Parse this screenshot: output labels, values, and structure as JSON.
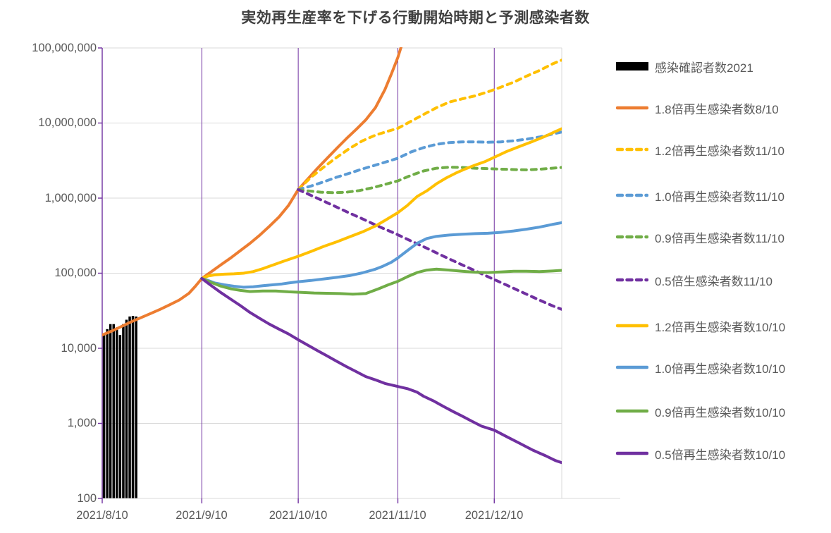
{
  "title": "実効再生産率を下げる行動開始時期と予測感染者数",
  "chart_data": {
    "type": "line",
    "title": "実効再生産率を下げる行動開始時期と予測感染者数",
    "legend_position": "right",
    "grid": {
      "h_color": "#D9D9D9",
      "v_color": "#7030A0",
      "grid_on": true
    },
    "y_axis": {
      "scale": "log",
      "min": 100,
      "max": 100000000,
      "tick_labels": [
        "100,000,000",
        "10,000,000",
        "1,000,000",
        "100,000",
        "10,000",
        "1,000",
        "100"
      ]
    },
    "x_axis": {
      "tick_labels": [
        "2021/8/10",
        "2021/9/10",
        "2021/10/10",
        "2021/11/10",
        "2021/12/10"
      ],
      "tick_days": [
        0,
        31,
        61,
        92,
        122
      ],
      "end_day": 143
    },
    "bars": {
      "name": "感染確認者数2021",
      "color": "#000000",
      "points": [
        [
          0,
          15500
        ],
        [
          1,
          18000
        ],
        [
          2,
          21000
        ],
        [
          3,
          21000
        ],
        [
          4,
          19000
        ],
        [
          5,
          15000
        ],
        [
          6,
          21000
        ],
        [
          7,
          24000
        ],
        [
          8,
          26500
        ],
        [
          9,
          27000
        ],
        [
          10,
          26500
        ]
      ]
    },
    "series": [
      {
        "name": "1.8倍再生感染者数8/10",
        "color": "#ED7D31",
        "dashed": false,
        "points": [
          [
            0,
            15000
          ],
          [
            3,
            17000
          ],
          [
            6,
            19500
          ],
          [
            9,
            22500
          ],
          [
            12,
            25500
          ],
          [
            15,
            29000
          ],
          [
            18,
            33000
          ],
          [
            21,
            38000
          ],
          [
            24,
            44000
          ],
          [
            27,
            54000
          ],
          [
            29,
            67000
          ],
          [
            31,
            85000
          ],
          [
            34,
            105000
          ],
          [
            37,
            130000
          ],
          [
            40,
            160000
          ],
          [
            43,
            200000
          ],
          [
            46,
            250000
          ],
          [
            49,
            320000
          ],
          [
            52,
            420000
          ],
          [
            55,
            560000
          ],
          [
            58,
            800000
          ],
          [
            61,
            1300000
          ],
          [
            64,
            1800000
          ],
          [
            67,
            2500000
          ],
          [
            70,
            3400000
          ],
          [
            73,
            4600000
          ],
          [
            76,
            6200000
          ],
          [
            79,
            8200000
          ],
          [
            82,
            11000000
          ],
          [
            85,
            16000000
          ],
          [
            88,
            28000000
          ],
          [
            90,
            45000000
          ],
          [
            92,
            75000000
          ],
          [
            94,
            140000000
          ]
        ]
      },
      {
        "name": "1.2倍再生感染者数11/10",
        "color": "#FFC000",
        "dashed": true,
        "points": [
          [
            61,
            1300000
          ],
          [
            65,
            1900000
          ],
          [
            69,
            2600000
          ],
          [
            73,
            3500000
          ],
          [
            77,
            4600000
          ],
          [
            81,
            5800000
          ],
          [
            85,
            6900000
          ],
          [
            89,
            7800000
          ],
          [
            92,
            8500000
          ],
          [
            96,
            10500000
          ],
          [
            100,
            13000000
          ],
          [
            104,
            16000000
          ],
          [
            108,
            19000000
          ],
          [
            112,
            21000000
          ],
          [
            116,
            23000000
          ],
          [
            120,
            26000000
          ],
          [
            124,
            30000000
          ],
          [
            128,
            35000000
          ],
          [
            132,
            42000000
          ],
          [
            136,
            50000000
          ],
          [
            140,
            61000000
          ],
          [
            143,
            69000000
          ]
        ]
      },
      {
        "name": "1.0倍再生感染者数11/10",
        "color": "#5B9BD5",
        "dashed": true,
        "points": [
          [
            61,
            1300000
          ],
          [
            65,
            1450000
          ],
          [
            69,
            1650000
          ],
          [
            73,
            1900000
          ],
          [
            77,
            2150000
          ],
          [
            81,
            2450000
          ],
          [
            85,
            2750000
          ],
          [
            89,
            3100000
          ],
          [
            92,
            3400000
          ],
          [
            96,
            4100000
          ],
          [
            100,
            4700000
          ],
          [
            104,
            5200000
          ],
          [
            108,
            5500000
          ],
          [
            112,
            5600000
          ],
          [
            116,
            5600000
          ],
          [
            120,
            5550000
          ],
          [
            124,
            5600000
          ],
          [
            128,
            5800000
          ],
          [
            132,
            6100000
          ],
          [
            136,
            6500000
          ],
          [
            140,
            7100000
          ],
          [
            143,
            7600000
          ]
        ]
      },
      {
        "name": "0.9倍再生感染者数11/10",
        "color": "#70AD47",
        "dashed": true,
        "points": [
          [
            61,
            1300000
          ],
          [
            64,
            1250000
          ],
          [
            68,
            1200000
          ],
          [
            72,
            1180000
          ],
          [
            76,
            1200000
          ],
          [
            80,
            1260000
          ],
          [
            84,
            1370000
          ],
          [
            88,
            1520000
          ],
          [
            92,
            1700000
          ],
          [
            96,
            2000000
          ],
          [
            100,
            2300000
          ],
          [
            104,
            2500000
          ],
          [
            108,
            2580000
          ],
          [
            112,
            2560000
          ],
          [
            116,
            2500000
          ],
          [
            120,
            2470000
          ],
          [
            124,
            2430000
          ],
          [
            128,
            2400000
          ],
          [
            132,
            2380000
          ],
          [
            136,
            2420000
          ],
          [
            140,
            2500000
          ],
          [
            143,
            2560000
          ]
        ]
      },
      {
        "name": "0.5倍生感染者数11/10",
        "color": "#7030A0",
        "dashed": true,
        "points": [
          [
            61,
            1300000
          ],
          [
            66,
            1040000
          ],
          [
            71,
            830000
          ],
          [
            76,
            660000
          ],
          [
            81,
            530000
          ],
          [
            86,
            420000
          ],
          [
            91,
            340000
          ],
          [
            96,
            270000
          ],
          [
            101,
            215000
          ],
          [
            106,
            170000
          ],
          [
            111,
            135000
          ],
          [
            116,
            108000
          ],
          [
            121,
            86000
          ],
          [
            126,
            69000
          ],
          [
            131,
            55000
          ],
          [
            136,
            44000
          ],
          [
            140,
            37000
          ],
          [
            143,
            33000
          ]
        ]
      },
      {
        "name": "1.2倍再生感染者数10/10",
        "color": "#FFC000",
        "dashed": false,
        "points": [
          [
            31,
            85000
          ],
          [
            33,
            92000
          ],
          [
            35,
            95000
          ],
          [
            38,
            97000
          ],
          [
            41,
            98000
          ],
          [
            44,
            100000
          ],
          [
            47,
            105000
          ],
          [
            50,
            115000
          ],
          [
            53,
            128000
          ],
          [
            56,
            142000
          ],
          [
            58,
            152000
          ],
          [
            61,
            168000
          ],
          [
            65,
            195000
          ],
          [
            69,
            228000
          ],
          [
            73,
            262000
          ],
          [
            77,
            305000
          ],
          [
            81,
            355000
          ],
          [
            85,
            425000
          ],
          [
            88,
            505000
          ],
          [
            92,
            640000
          ],
          [
            95,
            800000
          ],
          [
            98,
            1050000
          ],
          [
            101,
            1250000
          ],
          [
            104,
            1550000
          ],
          [
            107,
            1850000
          ],
          [
            110,
            2150000
          ],
          [
            113,
            2450000
          ],
          [
            116,
            2750000
          ],
          [
            119,
            3050000
          ],
          [
            122,
            3500000
          ],
          [
            126,
            4200000
          ],
          [
            130,
            4900000
          ],
          [
            134,
            5700000
          ],
          [
            138,
            6700000
          ],
          [
            141,
            7700000
          ],
          [
            143,
            8400000
          ]
        ]
      },
      {
        "name": "1.0倍再生感染者数10/10",
        "color": "#5B9BD5",
        "dashed": false,
        "points": [
          [
            31,
            85000
          ],
          [
            33,
            80000
          ],
          [
            35,
            74000
          ],
          [
            38,
            70000
          ],
          [
            41,
            67000
          ],
          [
            44,
            65000
          ],
          [
            47,
            66000
          ],
          [
            50,
            68000
          ],
          [
            53,
            70000
          ],
          [
            56,
            72000
          ],
          [
            58,
            74000
          ],
          [
            61,
            77000
          ],
          [
            65,
            80000
          ],
          [
            69,
            84000
          ],
          [
            73,
            88000
          ],
          [
            77,
            93000
          ],
          [
            81,
            101000
          ],
          [
            85,
            113000
          ],
          [
            87,
            122000
          ],
          [
            90,
            140000
          ],
          [
            92,
            160000
          ],
          [
            95,
            200000
          ],
          [
            98,
            250000
          ],
          [
            101,
            290000
          ],
          [
            104,
            310000
          ],
          [
            108,
            322000
          ],
          [
            112,
            330000
          ],
          [
            116,
            336000
          ],
          [
            120,
            340000
          ],
          [
            124,
            350000
          ],
          [
            128,
            365000
          ],
          [
            132,
            385000
          ],
          [
            136,
            410000
          ],
          [
            140,
            445000
          ],
          [
            143,
            470000
          ]
        ]
      },
      {
        "name": "0.9倍再生感染者数10/10",
        "color": "#70AD47",
        "dashed": false,
        "points": [
          [
            31,
            85000
          ],
          [
            34,
            75000
          ],
          [
            37,
            67000
          ],
          [
            40,
            62000
          ],
          [
            43,
            59000
          ],
          [
            46,
            57000
          ],
          [
            50,
            58000
          ],
          [
            54,
            58000
          ],
          [
            58,
            56500
          ],
          [
            62,
            55500
          ],
          [
            66,
            54500
          ],
          [
            70,
            54000
          ],
          [
            74,
            53500
          ],
          [
            78,
            52500
          ],
          [
            82,
            53500
          ],
          [
            86,
            62000
          ],
          [
            89,
            70000
          ],
          [
            92,
            78000
          ],
          [
            95,
            90000
          ],
          [
            98,
            102000
          ],
          [
            101,
            110000
          ],
          [
            104,
            113000
          ],
          [
            108,
            110000
          ],
          [
            112,
            106000
          ],
          [
            116,
            103000
          ],
          [
            120,
            102000
          ],
          [
            124,
            104000
          ],
          [
            128,
            106000
          ],
          [
            132,
            106000
          ],
          [
            136,
            105000
          ],
          [
            140,
            107000
          ],
          [
            143,
            109000
          ]
        ]
      },
      {
        "name": "0.5倍再生感染者数10/10",
        "color": "#7030A0",
        "dashed": false,
        "points": [
          [
            31,
            85000
          ],
          [
            34,
            68000
          ],
          [
            37,
            55000
          ],
          [
            40,
            45000
          ],
          [
            43,
            37000
          ],
          [
            46,
            30000
          ],
          [
            49,
            25000
          ],
          [
            52,
            21000
          ],
          [
            55,
            18000
          ],
          [
            58,
            15500
          ],
          [
            61,
            13000
          ],
          [
            64,
            11000
          ],
          [
            67,
            9300
          ],
          [
            70,
            7900
          ],
          [
            73,
            6700
          ],
          [
            76,
            5700
          ],
          [
            79,
            4900
          ],
          [
            82,
            4200
          ],
          [
            85,
            3800
          ],
          [
            88,
            3400
          ],
          [
            92,
            3100
          ],
          [
            95,
            2900
          ],
          [
            98,
            2600
          ],
          [
            100,
            2300
          ],
          [
            103,
            2000
          ],
          [
            106,
            1700
          ],
          [
            109,
            1450
          ],
          [
            112,
            1250
          ],
          [
            115,
            1070
          ],
          [
            118,
            920
          ],
          [
            122,
            810
          ],
          [
            126,
            660
          ],
          [
            130,
            540
          ],
          [
            134,
            440
          ],
          [
            138,
            370
          ],
          [
            141,
            320
          ],
          [
            143,
            300
          ]
        ]
      }
    ]
  }
}
